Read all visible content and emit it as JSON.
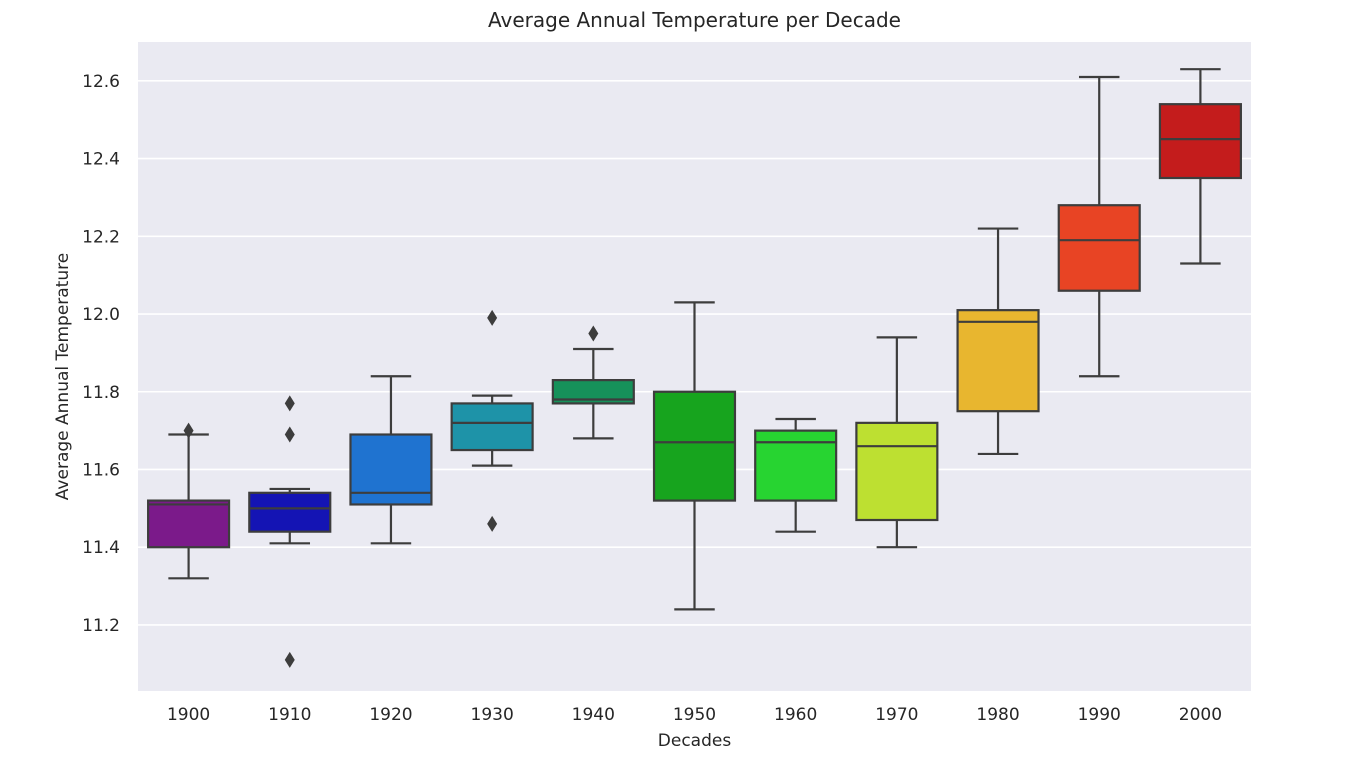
{
  "chart_data": {
    "type": "box",
    "title": "Average Annual Temperature per Decade",
    "xlabel": "Decades",
    "ylabel": "Average Annual Temperature",
    "ylim": [
      11.03,
      12.7
    ],
    "yticks": [
      11.2,
      11.4,
      11.6,
      11.8,
      12.0,
      12.2,
      12.4,
      12.6
    ],
    "ytick_labels": [
      "11.2",
      "11.4",
      "11.6",
      "11.8",
      "12.0",
      "12.2",
      "12.4",
      "12.6"
    ],
    "grid": true,
    "legend": "none",
    "categories": [
      "1900",
      "1910",
      "1920",
      "1930",
      "1940",
      "1950",
      "1960",
      "1970",
      "1980",
      "1990",
      "2000"
    ],
    "boxes": [
      {
        "category": "1900",
        "whisker_low": 11.32,
        "q1": 11.4,
        "median": 11.51,
        "q3": 11.52,
        "whisker_high": 11.69,
        "outliers": [
          11.7
        ],
        "color": "#7b1a8a"
      },
      {
        "category": "1910",
        "whisker_low": 11.41,
        "q1": 11.44,
        "median": 11.5,
        "q3": 11.54,
        "whisker_high": 11.55,
        "outliers": [
          11.11,
          11.69,
          11.77
        ],
        "color": "#1414b4"
      },
      {
        "category": "1920",
        "whisker_low": 11.41,
        "q1": 11.51,
        "median": 11.54,
        "q3": 11.69,
        "whisker_high": 11.84,
        "outliers": [],
        "color": "#1f73d0"
      },
      {
        "category": "1930",
        "whisker_low": 11.61,
        "q1": 11.65,
        "median": 11.72,
        "q3": 11.77,
        "whisker_high": 11.79,
        "outliers": [
          11.46,
          11.99
        ],
        "color": "#1e93a8"
      },
      {
        "category": "1940",
        "whisker_low": 11.68,
        "q1": 11.77,
        "median": 11.78,
        "q3": 11.83,
        "whisker_high": 11.91,
        "outliers": [
          11.95
        ],
        "color": "#16915a"
      },
      {
        "category": "1950",
        "whisker_low": 11.24,
        "q1": 11.52,
        "median": 11.67,
        "q3": 11.8,
        "whisker_high": 12.03,
        "outliers": [],
        "color": "#17a41e"
      },
      {
        "category": "1960",
        "whisker_low": 11.44,
        "q1": 11.52,
        "median": 11.67,
        "q3": 11.7,
        "whisker_high": 11.73,
        "outliers": [],
        "color": "#27d431"
      },
      {
        "category": "1970",
        "whisker_low": 11.4,
        "q1": 11.47,
        "median": 11.66,
        "q3": 11.72,
        "whisker_high": 11.94,
        "outliers": [],
        "color": "#bde031"
      },
      {
        "category": "1980",
        "whisker_low": 11.64,
        "q1": 11.75,
        "median": 11.98,
        "q3": 12.01,
        "whisker_high": 12.22,
        "outliers": [],
        "color": "#e8b62f"
      },
      {
        "category": "1990",
        "whisker_low": 11.84,
        "q1": 12.06,
        "median": 12.19,
        "q3": 12.28,
        "whisker_high": 12.61,
        "outliers": [],
        "color": "#e84424"
      },
      {
        "category": "2000",
        "whisker_low": 12.13,
        "q1": 12.35,
        "median": 12.45,
        "q3": 12.54,
        "whisker_high": 12.63,
        "outliers": [],
        "color": "#c41c1c"
      }
    ]
  }
}
